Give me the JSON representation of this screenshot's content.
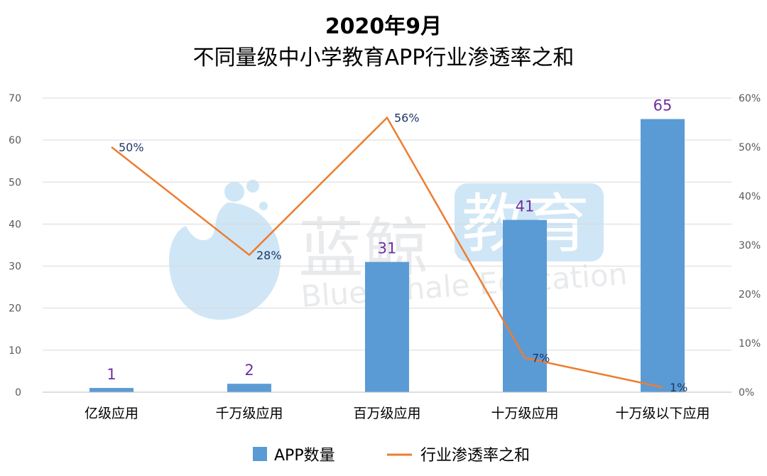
{
  "title": [
    "2020年9月",
    "不同量级中小学教育APP行业渗透率之和"
  ],
  "watermark": {
    "cn": "蓝鲸",
    "cn_box": "教育",
    "en": "Blue Whale Education"
  },
  "colors": {
    "bar": "#5b9bd5",
    "line": "#ed7d31",
    "bar_label": "#7030a0",
    "line_label": "#1f3864",
    "grid": "#d9d9d9"
  },
  "chart_data": {
    "type": "bar",
    "categories": [
      "亿级应用",
      "千万级应用",
      "百万级应用",
      "十万级应用",
      "十万级以下应用"
    ],
    "series": [
      {
        "name": "APP数量",
        "type": "bar",
        "axis": "left",
        "values": [
          1,
          2,
          31,
          41,
          65
        ]
      },
      {
        "name": "行业渗透率之和",
        "type": "line",
        "axis": "right",
        "values": [
          50,
          28,
          56,
          7,
          1
        ],
        "unit": "%"
      }
    ],
    "y_left": {
      "min": 0,
      "max": 70,
      "step": 10
    },
    "y_right": {
      "min": 0,
      "max": 60,
      "step": 10,
      "unit": "%"
    },
    "grid": true,
    "legend": "bottom"
  }
}
